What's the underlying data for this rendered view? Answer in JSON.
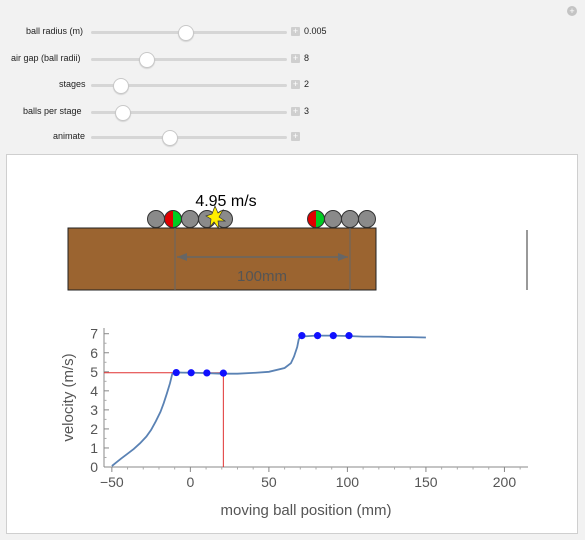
{
  "controls": [
    {
      "label": "ball radius (m)",
      "value": "0.005",
      "position": 0.48
    },
    {
      "label": "air gap (ball radii)",
      "value": "8",
      "position": 0.28
    },
    {
      "label": "stages",
      "value": "2",
      "position": 0.15
    },
    {
      "label": "balls per stage",
      "value": "3",
      "position": 0.16
    },
    {
      "label": "animate",
      "value": "",
      "position": 0.4
    }
  ],
  "scene": {
    "speed_label": "4.95 m/s",
    "dimension_label": "100mm",
    "colors": {
      "track": "#9b6430",
      "ball": "#8a8a8a",
      "accent_red": "#e00000",
      "accent_green": "#00cc22",
      "spark": "#ffee00"
    }
  },
  "chart_data": {
    "type": "line",
    "xlabel": "moving ball position (mm)",
    "ylabel": "velocity (m/s)",
    "xlim": [
      -55,
      215
    ],
    "ylim": [
      0,
      7.3
    ],
    "x_ticks": [
      "-50",
      "0",
      "50",
      "100",
      "150",
      "200"
    ],
    "y_ticks": [
      "0",
      "1",
      "2",
      "3",
      "4",
      "5",
      "6",
      "7"
    ],
    "series": [
      {
        "x": [
          -50,
          -47,
          -44,
          -40,
          -36,
          -32,
          -28,
          -25,
          -22,
          -19,
          -17,
          -15,
          -13,
          -11.5,
          -10,
          -8,
          -5,
          0,
          5,
          10,
          20,
          30,
          40,
          50,
          60,
          64,
          66,
          68,
          69,
          70,
          80,
          90,
          100,
          110,
          120,
          130,
          140,
          150
        ],
        "y": [
          0.05,
          0.25,
          0.45,
          0.7,
          0.95,
          1.25,
          1.6,
          1.95,
          2.4,
          2.9,
          3.35,
          3.85,
          4.4,
          4.9,
          4.96,
          4.97,
          4.96,
          4.95,
          4.94,
          4.93,
          4.9,
          4.9,
          4.94,
          5.0,
          5.2,
          5.45,
          5.8,
          6.3,
          6.7,
          6.85,
          6.9,
          6.9,
          6.88,
          6.85,
          6.85,
          6.82,
          6.82,
          6.8
        ],
        "color": "#5a82b4"
      }
    ],
    "points": [
      {
        "x": -9,
        "y": 4.96
      },
      {
        "x": 0.5,
        "y": 4.95
      },
      {
        "x": 10.5,
        "y": 4.94
      },
      {
        "x": 21,
        "y": 4.93
      },
      {
        "x": 71,
        "y": 6.9
      },
      {
        "x": 81,
        "y": 6.9
      },
      {
        "x": 91,
        "y": 6.9
      },
      {
        "x": 101,
        "y": 6.9
      }
    ],
    "marker": {
      "x": 21,
      "y": 4.95
    },
    "grid": false
  }
}
